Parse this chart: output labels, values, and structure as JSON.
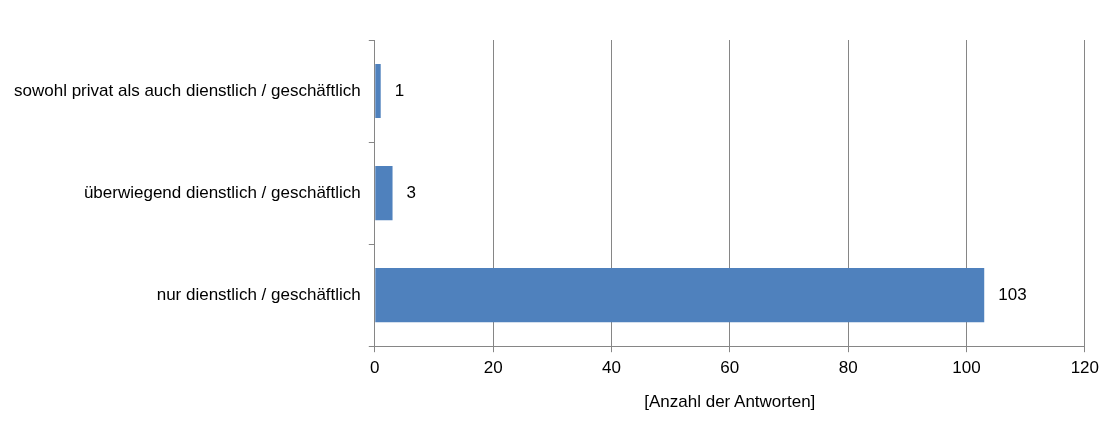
{
  "chart_data": {
    "type": "bar",
    "orientation": "horizontal",
    "categories": [
      "sowohl privat als auch dienstlich / geschäftlich",
      "überwiegend dienstlich / geschäftlich",
      "nur dienstlich / geschäftlich"
    ],
    "values": [
      1,
      3,
      103
    ],
    "color": "#4f81bd",
    "xlim": [
      0,
      120
    ],
    "xticks": [
      0,
      20,
      40,
      60,
      80,
      100,
      120
    ],
    "xlabel": "[Anzahl der Antworten]",
    "grid": "x",
    "data_labels": true,
    "legend": false
  }
}
